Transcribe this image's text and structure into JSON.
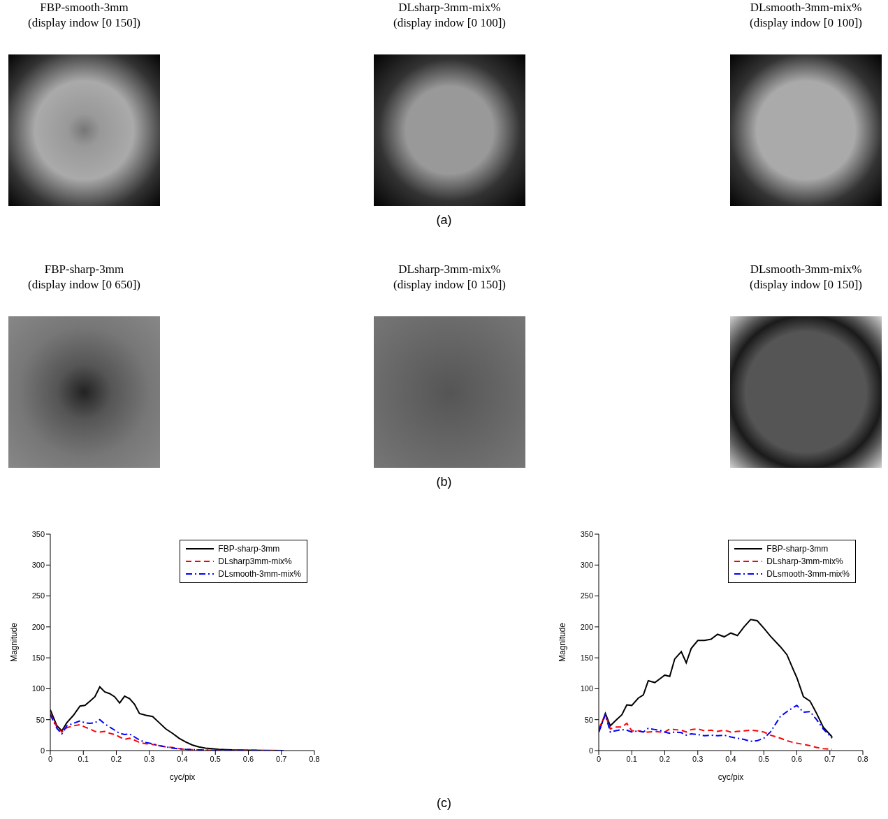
{
  "panels": [
    {
      "label": "(a)",
      "images": [
        {
          "title": "FBP-smooth-3mm",
          "subtitle": "(display indow [0 150])"
        },
        {
          "title": "DLsharp-3mm-mix%",
          "subtitle": "(display indow [0 100])"
        },
        {
          "title": "DLsmooth-3mm-mix%",
          "subtitle": "(display indow [0 100])"
        }
      ]
    },
    {
      "label": "(b)",
      "images": [
        {
          "title": "FBP-sharp-3mm",
          "subtitle": "(display indow [0 650])"
        },
        {
          "title": "DLsharp-3mm-mix%",
          "subtitle": "(display indow [0 150])"
        },
        {
          "title": "DLsmooth-3mm-mix%",
          "subtitle": "(display indow [0 150])"
        }
      ]
    }
  ],
  "chart_panel_label": "(c)",
  "chart_data": [
    {
      "type": "line",
      "x_label": "cyc/pix",
      "y_label": "Magnitude",
      "xlim": [
        0,
        0.8
      ],
      "xticks": [
        0,
        0.1,
        0.2,
        0.3,
        0.4,
        0.5,
        0.6,
        0.7,
        0.8
      ],
      "ylim": [
        0,
        350
      ],
      "yticks": [
        0,
        50,
        100,
        150,
        200,
        250,
        300,
        350
      ],
      "grid": false,
      "legend": "upper right",
      "x": [
        0,
        0.02,
        0.035,
        0.05,
        0.07,
        0.09,
        0.105,
        0.12,
        0.135,
        0.15,
        0.165,
        0.18,
        0.195,
        0.21,
        0.225,
        0.24,
        0.255,
        0.27,
        0.29,
        0.31,
        0.33,
        0.35,
        0.37,
        0.39,
        0.41,
        0.43,
        0.45,
        0.47,
        0.49,
        0.51,
        0.55,
        0.6,
        0.65,
        0.707
      ],
      "series": [
        {
          "name": "FBP-sharp-3mm",
          "color": "#000000",
          "line_style": "solid",
          "values": [
            66,
            40,
            32,
            45,
            57,
            72,
            73,
            80,
            87,
            103,
            95,
            92,
            87,
            77,
            88,
            84,
            75,
            60,
            57,
            55,
            45,
            35,
            28,
            20,
            14,
            9,
            6,
            4,
            3,
            2,
            1,
            0.5,
            0.3,
            0
          ]
        },
        {
          "name": "DLsharp3mm-mix%",
          "color": "#ff0000",
          "line_style": "dashed",
          "values": [
            60,
            38,
            30,
            37,
            40,
            42,
            38,
            35,
            31,
            30,
            31,
            28,
            26,
            22,
            18,
            20,
            17,
            13,
            11,
            10,
            8,
            6,
            5,
            3,
            2,
            1.5,
            1,
            0.7,
            0.5,
            0.4,
            0.3,
            0.2,
            0.1,
            0
          ]
        },
        {
          "name": "DLsmooth-3mm-mix%",
          "color": "#0000ff",
          "line_style": "dashdot",
          "values": [
            58,
            36,
            27,
            40,
            44,
            48,
            45,
            44,
            45,
            50,
            43,
            38,
            33,
            28,
            26,
            27,
            22,
            17,
            13,
            11,
            8,
            6,
            4,
            3,
            2,
            1.5,
            1,
            0.7,
            0.5,
            0.4,
            0.3,
            0.2,
            0.1,
            0
          ]
        }
      ]
    },
    {
      "type": "line",
      "x_label": "cyc/pix",
      "y_label": "Magnitude",
      "xlim": [
        0,
        0.8
      ],
      "xticks": [
        0,
        0.1,
        0.2,
        0.3,
        0.4,
        0.5,
        0.6,
        0.7,
        0.8
      ],
      "ylim": [
        0,
        350
      ],
      "yticks": [
        0,
        50,
        100,
        150,
        200,
        250,
        300,
        350
      ],
      "grid": false,
      "legend": "upper right",
      "x": [
        0,
        0.02,
        0.035,
        0.05,
        0.07,
        0.085,
        0.1,
        0.12,
        0.135,
        0.15,
        0.17,
        0.19,
        0.2,
        0.215,
        0.23,
        0.25,
        0.265,
        0.28,
        0.3,
        0.32,
        0.34,
        0.36,
        0.38,
        0.4,
        0.42,
        0.44,
        0.46,
        0.48,
        0.5,
        0.52,
        0.55,
        0.57,
        0.59,
        0.6,
        0.62,
        0.64,
        0.66,
        0.68,
        0.707
      ],
      "series": [
        {
          "name": "FBP-sharp-3mm",
          "color": "#000000",
          "line_style": "solid",
          "values": [
            30,
            60,
            40,
            48,
            58,
            74,
            73,
            85,
            90,
            113,
            110,
            118,
            122,
            120,
            148,
            160,
            142,
            165,
            178,
            178,
            180,
            188,
            184,
            190,
            186,
            200,
            212,
            210,
            198,
            185,
            168,
            155,
            130,
            118,
            87,
            80,
            60,
            38,
            22
          ]
        },
        {
          "name": "DLsharp-3mm-mix%",
          "color": "#ff0000",
          "line_style": "dashed",
          "values": [
            35,
            58,
            35,
            38,
            38,
            44,
            32,
            32,
            30,
            30,
            31,
            30,
            30,
            35,
            34,
            33,
            30,
            34,
            35,
            32,
            33,
            31,
            33,
            30,
            31,
            32,
            33,
            32,
            30,
            25,
            20,
            16,
            13,
            12,
            10,
            8,
            5,
            3,
            2
          ]
        },
        {
          "name": "DLsmooth-3mm-mix%",
          "color": "#0000ff",
          "line_style": "dashdot",
          "values": [
            30,
            58,
            30,
            32,
            34,
            33,
            30,
            32,
            30,
            36,
            34,
            32,
            30,
            28,
            30,
            29,
            25,
            27,
            26,
            24,
            25,
            24,
            25,
            22,
            20,
            18,
            15,
            16,
            20,
            30,
            55,
            63,
            70,
            73,
            62,
            63,
            50,
            35,
            20
          ]
        }
      ]
    }
  ]
}
